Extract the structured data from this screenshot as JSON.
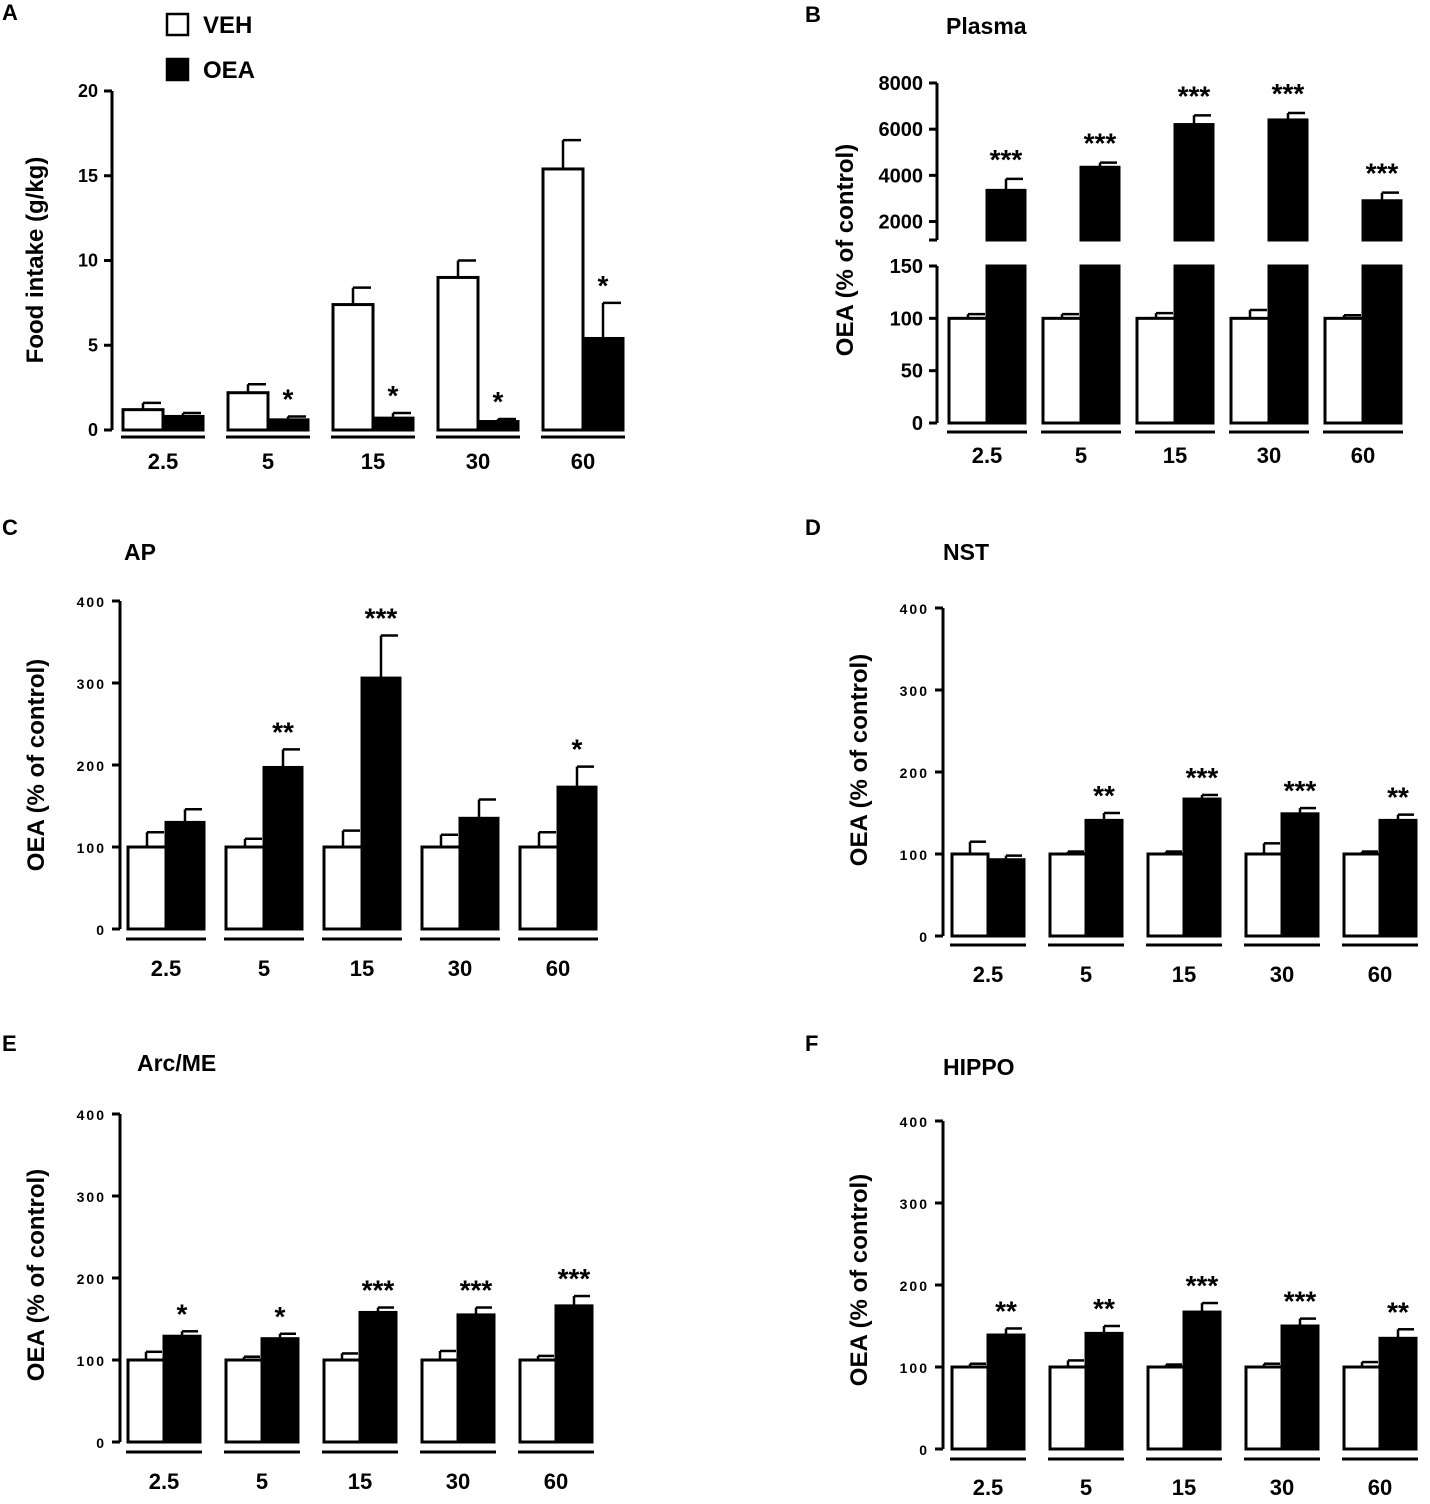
{
  "figure": {
    "legend": [
      {
        "label": "VEH",
        "fill": "#ffffff"
      },
      {
        "label": "OEA",
        "fill": "#000000"
      }
    ],
    "bar_stroke": "#000000",
    "text_color": "#000000"
  },
  "chart_data": [
    {
      "panel": "A",
      "type": "bar",
      "title": "",
      "ylabel": "Food intake (g/kg)",
      "xlabel": "",
      "ylim": [
        0,
        20
      ],
      "yticks": [
        0,
        5,
        10,
        15,
        20
      ],
      "categories": [
        "2.5",
        "5",
        "15",
        "30",
        "60"
      ],
      "series": [
        {
          "name": "VEH",
          "values": [
            1.2,
            2.2,
            7.4,
            9.0,
            15.4
          ],
          "errors": [
            0.4,
            0.5,
            1.0,
            1.0,
            1.7
          ],
          "sig": [
            "",
            "",
            "",
            "",
            ""
          ]
        },
        {
          "name": "OEA",
          "values": [
            0.8,
            0.6,
            0.7,
            0.5,
            5.4
          ],
          "errors": [
            0.2,
            0.2,
            0.3,
            0.15,
            2.1
          ],
          "sig": [
            "",
            "*",
            "*",
            "*",
            "*"
          ]
        }
      ]
    },
    {
      "panel": "B",
      "type": "bar",
      "title": "Plasma",
      "ylabel": "OEA (% of control)",
      "xlabel": "",
      "broken_axis": true,
      "ylim_lower": [
        0,
        150
      ],
      "yticks_lower": [
        0,
        50,
        100,
        150
      ],
      "ylim_upper": [
        1200,
        8000
      ],
      "yticks_upper": [
        2000,
        4000,
        6000,
        8000
      ],
      "categories": [
        "2.5",
        "5",
        "15",
        "30",
        "60"
      ],
      "series": [
        {
          "name": "VEH",
          "values": [
            100,
            100,
            100,
            100,
            100
          ],
          "errors": [
            4,
            4,
            5,
            8,
            3
          ],
          "sig": [
            "",
            "",
            "",
            "",
            ""
          ]
        },
        {
          "name": "OEA",
          "values": [
            3350,
            4350,
            6200,
            6400,
            2900
          ],
          "errors": [
            500,
            200,
            400,
            300,
            350
          ],
          "sig": [
            "***",
            "***",
            "***",
            "***",
            "***"
          ]
        }
      ]
    },
    {
      "panel": "C",
      "type": "bar",
      "title": "AP",
      "ylabel": "OEA (% of control)",
      "xlabel": "",
      "ylim": [
        0,
        400
      ],
      "yticks": [
        0,
        100,
        200,
        300,
        400
      ],
      "categories": [
        "2.5",
        "5",
        "15",
        "30",
        "60"
      ],
      "series": [
        {
          "name": "VEH",
          "values": [
            100,
            100,
            100,
            100,
            100
          ],
          "errors": [
            18,
            10,
            20,
            15,
            18
          ],
          "sig": [
            "",
            "",
            "",
            "",
            ""
          ]
        },
        {
          "name": "OEA",
          "values": [
            130,
            197,
            306,
            135,
            173
          ],
          "errors": [
            16,
            22,
            52,
            23,
            25
          ],
          "sig": [
            "",
            "**",
            "***",
            "",
            "*"
          ]
        }
      ]
    },
    {
      "panel": "D",
      "type": "bar",
      "title": "NST",
      "ylabel": "OEA (% of control)",
      "xlabel": "",
      "ylim": [
        0,
        400
      ],
      "yticks": [
        0,
        100,
        200,
        300,
        400
      ],
      "categories": [
        "2.5",
        "5",
        "15",
        "30",
        "60"
      ],
      "series": [
        {
          "name": "VEH",
          "values": [
            100,
            100,
            100,
            100,
            100
          ],
          "errors": [
            15,
            3,
            3,
            13,
            3
          ],
          "sig": [
            "",
            "",
            "",
            "",
            ""
          ]
        },
        {
          "name": "OEA",
          "values": [
            93,
            141,
            167,
            149,
            141
          ],
          "errors": [
            5,
            9,
            5,
            7,
            7
          ],
          "sig": [
            "",
            "**",
            "***",
            "***",
            "**"
          ]
        }
      ]
    },
    {
      "panel": "E",
      "type": "bar",
      "title": "Arc/ME",
      "ylabel": "OEA (% of control)",
      "xlabel": "",
      "ylim": [
        0,
        400
      ],
      "yticks": [
        0,
        100,
        200,
        300,
        400
      ],
      "categories": [
        "2.5",
        "5",
        "15",
        "30",
        "60"
      ],
      "series": [
        {
          "name": "VEH",
          "values": [
            100,
            100,
            100,
            100,
            100
          ],
          "errors": [
            10,
            4,
            8,
            11,
            5
          ],
          "sig": [
            "",
            "",
            "",
            "",
            ""
          ]
        },
        {
          "name": "OEA",
          "values": [
            129,
            126,
            158,
            155,
            166
          ],
          "errors": [
            6,
            6,
            6,
            9,
            12
          ],
          "sig": [
            "*",
            "*",
            "***",
            "***",
            "***"
          ]
        }
      ]
    },
    {
      "panel": "F",
      "type": "bar",
      "title": "HIPPO",
      "ylabel": "OEA (% of control)",
      "xlabel": "",
      "ylim": [
        0,
        400
      ],
      "yticks": [
        0,
        100,
        200,
        300,
        400
      ],
      "categories": [
        "2.5",
        "5",
        "15",
        "30",
        "60"
      ],
      "series": [
        {
          "name": "VEH",
          "values": [
            100,
            100,
            100,
            100,
            100
          ],
          "errors": [
            4,
            8,
            3,
            4,
            6
          ],
          "sig": [
            "",
            "",
            "",
            "",
            ""
          ]
        },
        {
          "name": "OEA",
          "values": [
            139,
            141,
            167,
            150,
            135
          ],
          "errors": [
            8,
            9,
            11,
            9,
            11
          ],
          "sig": [
            "**",
            "**",
            "***",
            "***",
            "**"
          ]
        }
      ]
    }
  ]
}
